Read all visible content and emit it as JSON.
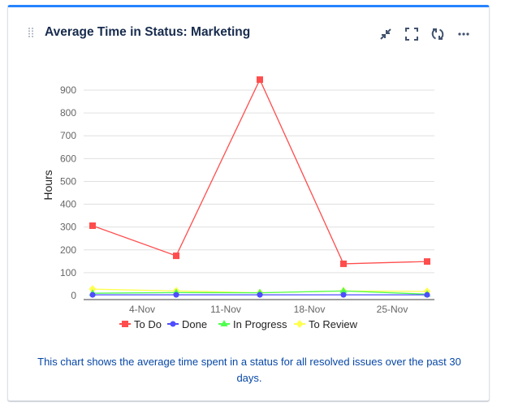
{
  "gadget": {
    "title": "Average Time in Status: Marketing",
    "accent_color": "#2684ff",
    "actions": [
      {
        "name": "minimize",
        "icon": "minimize-icon"
      },
      {
        "name": "fullscreen",
        "icon": "fullscreen-icon"
      },
      {
        "name": "refresh",
        "icon": "refresh-icon"
      },
      {
        "name": "more",
        "icon": "more-icon"
      }
    ],
    "description": "This chart shows the average time spent in a status for all resolved issues over the past 30 days."
  },
  "chart_data": {
    "type": "line",
    "title": "",
    "xlabel": "",
    "ylabel": "Hours",
    "ylim": [
      0,
      950
    ],
    "yticks": [
      0,
      100,
      200,
      300,
      400,
      500,
      600,
      700,
      800,
      900
    ],
    "xtick_labels": [
      "4-Nov",
      "11-Nov",
      "18-Nov",
      "25-Nov"
    ],
    "grid": true,
    "legend_position": "bottom",
    "x_points": [
      "31-Oct",
      "7-Nov",
      "14-Nov",
      "21-Nov",
      "28-Nov"
    ],
    "series": [
      {
        "name": "To Do",
        "color": "#ff4d4d",
        "marker": "square",
        "values": [
          306,
          174,
          946,
          139,
          149
        ]
      },
      {
        "name": "Done",
        "color": "#4d4dff",
        "marker": "circle",
        "values": [
          3,
          3,
          3,
          3,
          3
        ]
      },
      {
        "name": "In Progress",
        "color": "#4dff4d",
        "marker": "triangle",
        "values": [
          10,
          13,
          12,
          20,
          6
        ]
      },
      {
        "name": "To Review",
        "color": "#ffff4d",
        "marker": "diamond",
        "values": [
          28,
          20,
          12,
          20,
          18
        ]
      }
    ]
  }
}
